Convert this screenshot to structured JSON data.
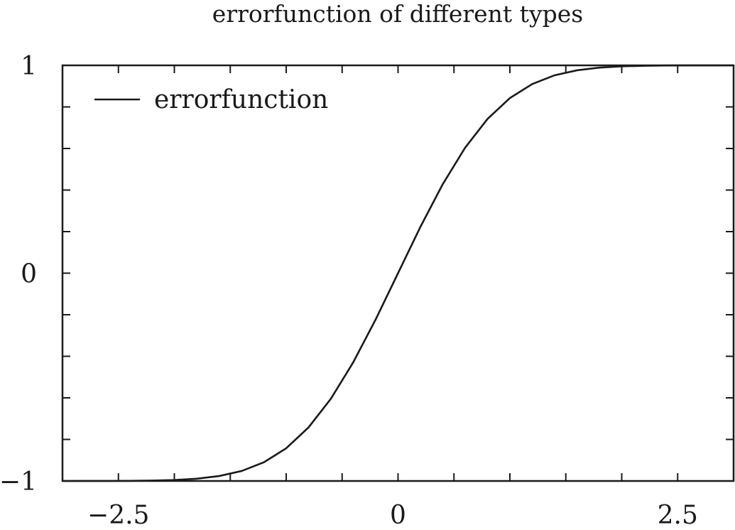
{
  "chart_data": {
    "type": "line",
    "title": "errorfunction of different types",
    "xlabel": "",
    "ylabel": "",
    "xlim": [
      -3,
      3
    ],
    "ylim": [
      -1,
      1
    ],
    "x_major_ticks": [
      -2.5,
      0,
      2.5
    ],
    "x_major_tick_labels": [
      "−2.5",
      "0",
      "2.5"
    ],
    "x_minor_ticks": [
      -3,
      -2.5,
      -2,
      -1.5,
      -1,
      -0.5,
      0,
      0.5,
      1,
      1.5,
      2,
      2.5,
      3
    ],
    "y_major_ticks": [
      -1,
      0,
      1
    ],
    "y_major_tick_labels": [
      "−1",
      "0",
      "1"
    ],
    "y_minor_ticks": [
      -1,
      -0.8,
      -0.6,
      -0.4,
      -0.2,
      0,
      0.2,
      0.4,
      0.6,
      0.8,
      1
    ],
    "grid": false,
    "legend": {
      "position": "top-left",
      "entries": [
        "errorfunction"
      ]
    },
    "series": [
      {
        "name": "errorfunction",
        "color": "#1a1a1a",
        "x": [
          -3.0,
          -2.8,
          -2.6,
          -2.4,
          -2.2,
          -2.0,
          -1.8,
          -1.6,
          -1.4,
          -1.2,
          -1.0,
          -0.8,
          -0.6,
          -0.4,
          -0.2,
          0.0,
          0.2,
          0.4,
          0.6,
          0.8,
          1.0,
          1.2,
          1.4,
          1.6,
          1.8,
          2.0,
          2.2,
          2.4,
          2.6,
          2.8,
          3.0
        ],
        "y": [
          -1.0,
          -0.9999,
          -0.9998,
          -0.9993,
          -0.9981,
          -0.9953,
          -0.9891,
          -0.9763,
          -0.9523,
          -0.9103,
          -0.8427,
          -0.7421,
          -0.6039,
          -0.4284,
          -0.2227,
          0.0,
          0.2227,
          0.4284,
          0.6039,
          0.7421,
          0.8427,
          0.9103,
          0.9523,
          0.9763,
          0.9891,
          0.9953,
          0.9981,
          0.9993,
          0.9998,
          0.9999,
          1.0
        ]
      }
    ]
  }
}
